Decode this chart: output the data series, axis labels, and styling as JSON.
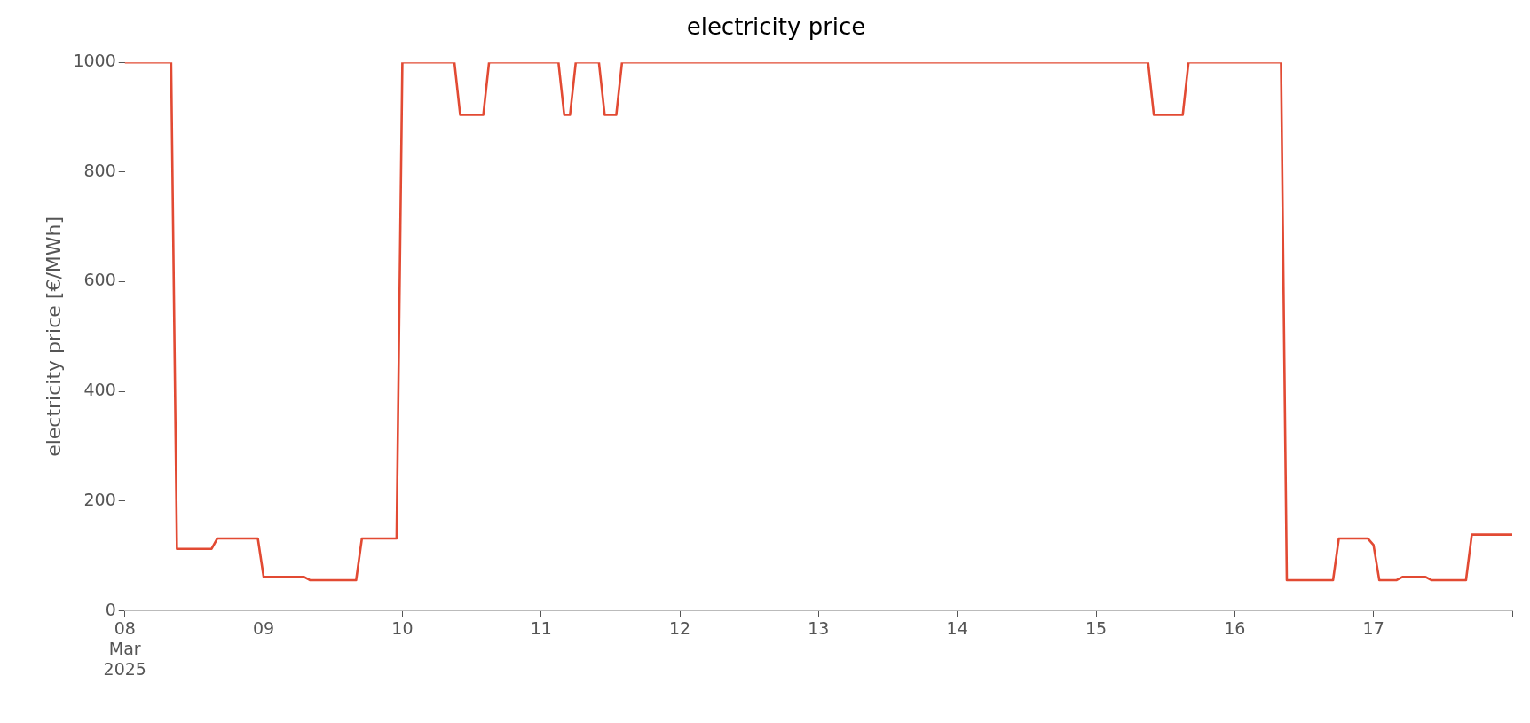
{
  "chart_data": {
    "type": "line",
    "title": "electricity price",
    "ylabel": "electricity price [€/MWh]",
    "x": [
      "2025-03-08T00:00",
      "2025-03-08T08:00",
      "2025-03-08T09:00",
      "2025-03-08T15:00",
      "2025-03-08T16:00",
      "2025-03-08T23:00",
      "2025-03-09T00:00",
      "2025-03-09T07:00",
      "2025-03-09T08:00",
      "2025-03-09T16:00",
      "2025-03-09T17:00",
      "2025-03-09T23:00",
      "2025-03-10T00:00",
      "2025-03-10T09:00",
      "2025-03-10T10:00",
      "2025-03-10T14:00",
      "2025-03-10T15:00",
      "2025-03-11T03:00",
      "2025-03-11T04:00",
      "2025-03-11T05:00",
      "2025-03-11T06:00",
      "2025-03-11T10:00",
      "2025-03-11T11:00",
      "2025-03-11T13:00",
      "2025-03-11T14:00",
      "2025-03-15T09:00",
      "2025-03-15T10:00",
      "2025-03-15T15:00",
      "2025-03-15T16:00",
      "2025-03-16T08:00",
      "2025-03-16T09:00",
      "2025-03-16T17:00",
      "2025-03-16T18:00",
      "2025-03-16T23:00",
      "2025-03-17T00:00",
      "2025-03-17T01:00",
      "2025-03-17T04:00",
      "2025-03-17T05:00",
      "2025-03-17T09:00",
      "2025-03-17T10:00",
      "2025-03-17T16:00",
      "2025-03-17T17:00",
      "2025-03-18T00:00"
    ],
    "series": [
      {
        "color": "#e24a33",
        "values": [
          1000,
          1000,
          113,
          113,
          132,
          132,
          62,
          62,
          56,
          56,
          132,
          132,
          1000,
          1000,
          904,
          904,
          1000,
          1000,
          904,
          904,
          1000,
          1000,
          904,
          904,
          1000,
          1000,
          904,
          904,
          1000,
          1000,
          56,
          56,
          132,
          132,
          120,
          56,
          56,
          62,
          62,
          56,
          56,
          139,
          139
        ]
      }
    ],
    "xlim": [
      "2025-03-08T00:00",
      "2025-03-18T00:00"
    ],
    "xticks": [
      {
        "value": "2025-03-08",
        "label": "08\nMar\n2025"
      },
      {
        "value": "2025-03-09",
        "label": "09"
      },
      {
        "value": "2025-03-10",
        "label": "10"
      },
      {
        "value": "2025-03-11",
        "label": "11"
      },
      {
        "value": "2025-03-12",
        "label": "12"
      },
      {
        "value": "2025-03-13",
        "label": "13"
      },
      {
        "value": "2025-03-14",
        "label": "14"
      },
      {
        "value": "2025-03-15",
        "label": "15"
      },
      {
        "value": "2025-03-16",
        "label": "16"
      },
      {
        "value": "2025-03-17",
        "label": "17"
      },
      {
        "value": "2025-03-18",
        "label": null
      }
    ],
    "ylim": [
      0,
      1000
    ],
    "yticks": [
      0,
      200,
      400,
      600,
      800,
      1000
    ],
    "grid": false,
    "legend": false,
    "marker": "none",
    "line_style": "solid"
  }
}
